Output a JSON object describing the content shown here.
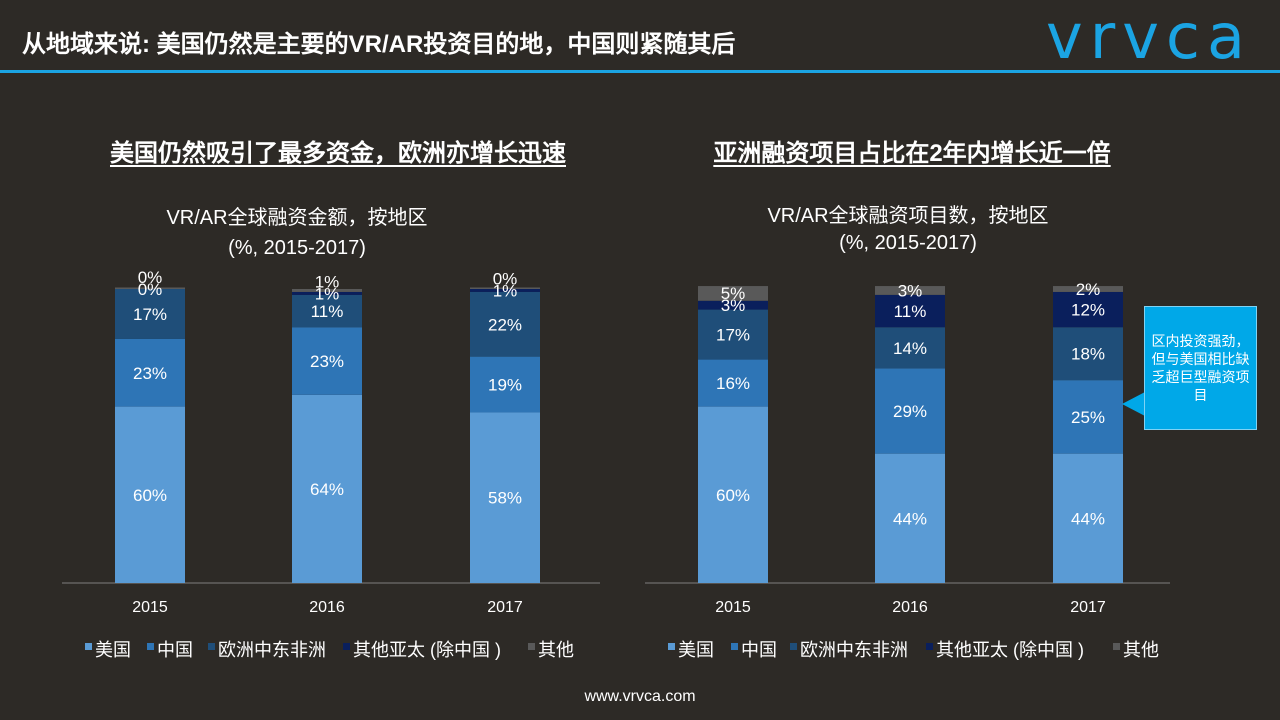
{
  "header": {
    "title": "从地域来说: 美国仍然是主要的VR/AR投资目的地，中国则紧随其后",
    "brand": "vrvca"
  },
  "colors": {
    "us": "#5a9bd5",
    "china": "#2e75b6",
    "europe": "#1f4e79",
    "asia_pacific": "#0a1f5c",
    "other": "#595959",
    "accent": "#1ba4e3",
    "callout": "#00a8e8"
  },
  "legend": [
    "美国",
    "中国",
    "欧洲中东非洲",
    "其他亚太 (除中国 )",
    "其他"
  ],
  "sections": [
    {
      "title": "美国仍然吸引了最多资金，欧洲亦增长迅速",
      "chart_title": [
        "VR/AR全球融资金额，按地区",
        "(%, 2015-2017)"
      ]
    },
    {
      "title": "亚洲融资项目占比在2年内增长近一倍",
      "chart_title": [
        "VR/AR全球融资项目数，按地区",
        "(%, 2015-2017)"
      ]
    }
  ],
  "callout": {
    "text": "区内投资强劲，但与美国相比缺乏超巨型融资项目"
  },
  "footer": {
    "url": "www.vrvca.com"
  },
  "chart_data": [
    {
      "type": "bar",
      "stacked": true,
      "percent": true,
      "title": "VR/AR全球融资金额，按地区",
      "subtitle": "(%, 2015-2017)",
      "categories": [
        "2015",
        "2016",
        "2017"
      ],
      "ylim": [
        0,
        100
      ],
      "legend_position": "bottom",
      "series": [
        {
          "name": "美国",
          "values": [
            60,
            64,
            58
          ],
          "labels": [
            "60%",
            "64%",
            "58%"
          ]
        },
        {
          "name": "中国",
          "values": [
            23,
            23,
            19
          ],
          "labels": [
            "23%",
            "23%",
            "19%"
          ]
        },
        {
          "name": "欧洲中东非洲",
          "values": [
            17,
            11,
            22
          ],
          "labels": [
            "17%",
            "11%",
            "22%"
          ]
        },
        {
          "name": "其他亚太 (除中国 )",
          "values": [
            0,
            1,
            1
          ],
          "labels": [
            "0%",
            "1%",
            "1%"
          ]
        },
        {
          "name": "其他",
          "values": [
            0,
            1,
            0
          ],
          "labels": [
            "0%",
            "1%",
            "0%"
          ]
        }
      ]
    },
    {
      "type": "bar",
      "stacked": true,
      "percent": true,
      "title": "VR/AR全球融资项目数，按地区",
      "subtitle": "(%, 2015-2017)",
      "categories": [
        "2015",
        "2016",
        "2017"
      ],
      "ylim": [
        0,
        100
      ],
      "legend_position": "bottom",
      "series": [
        {
          "name": "美国",
          "values": [
            60,
            44,
            44
          ],
          "labels": [
            "60%",
            "44%",
            "44%"
          ]
        },
        {
          "name": "中国",
          "values": [
            16,
            29,
            25
          ],
          "labels": [
            "16%",
            "29%",
            "25%"
          ]
        },
        {
          "name": "欧洲中东非洲",
          "values": [
            17,
            14,
            18
          ],
          "labels": [
            "17%",
            "14%",
            "18%"
          ]
        },
        {
          "name": "其他亚太 (除中国 )",
          "values": [
            3,
            11,
            12
          ],
          "labels": [
            "3%",
            "11%",
            "12%"
          ]
        },
        {
          "name": "其他",
          "values": [
            5,
            3,
            2
          ],
          "labels": [
            "5%",
            "3%",
            "2%"
          ]
        }
      ]
    }
  ]
}
